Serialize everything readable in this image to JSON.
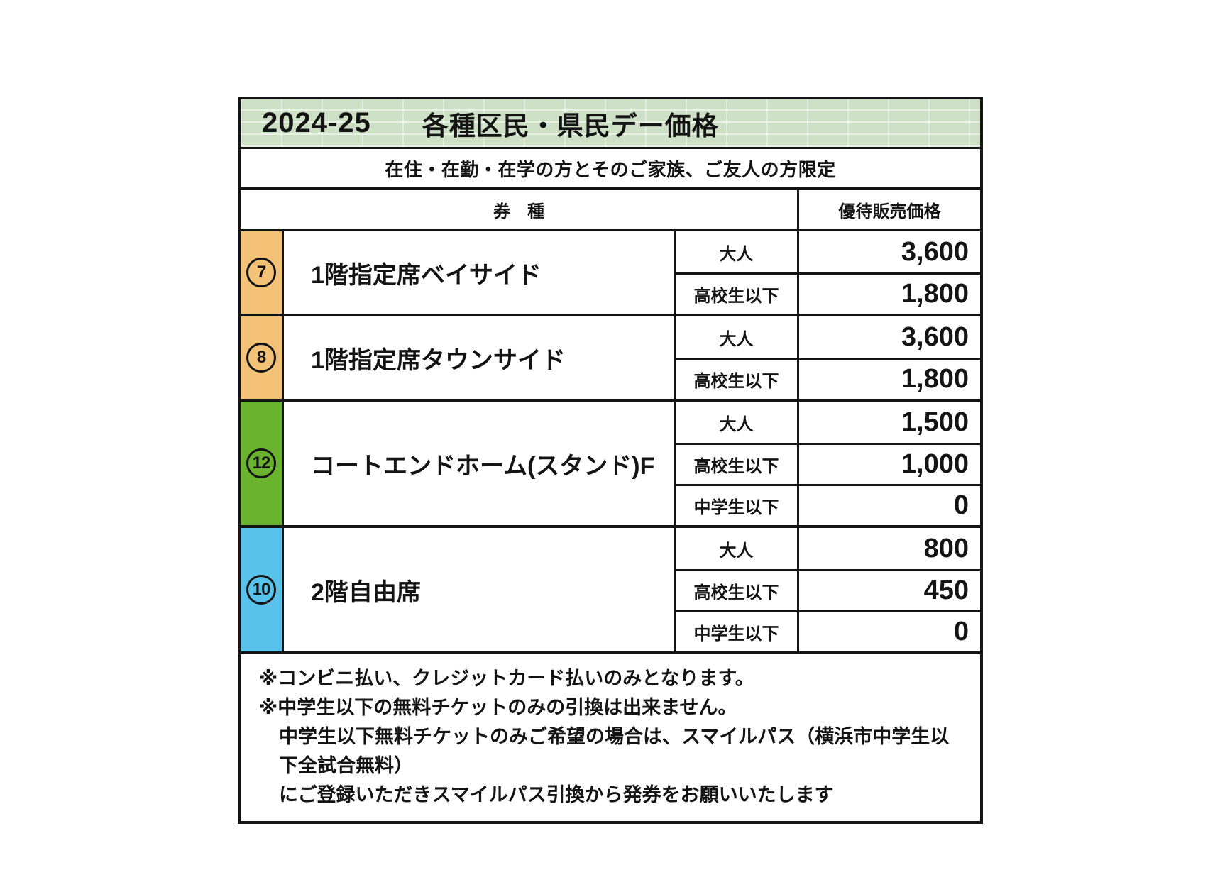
{
  "header": {
    "season": "2024-25",
    "title": "各種区民・県民デー価格",
    "subtitle": "在住・在勤・在学の方とそのご家族、ご友人の方限定",
    "col_ticket_type": "券　種",
    "col_price": "優待販売価格"
  },
  "colors": {
    "header_green": "#cde0c6",
    "bar_orange": "#f4c276",
    "bar_green": "#6ab32e",
    "bar_blue": "#58c2eb",
    "border_black": "#141414"
  },
  "table": {
    "groups": [
      {
        "number": "7",
        "color": "#f4c276",
        "name": "1階指定席ベイサイド",
        "rows": [
          {
            "age": "大人",
            "price": "3,600"
          },
          {
            "age": "高校生以下",
            "price": "1,800"
          }
        ]
      },
      {
        "number": "8",
        "color": "#f4c276",
        "name": "1階指定席タウンサイド",
        "rows": [
          {
            "age": "大人",
            "price": "3,600"
          },
          {
            "age": "高校生以下",
            "price": "1,800"
          }
        ]
      },
      {
        "number": "12",
        "color": "#6ab32e",
        "name": "コートエンドホーム(スタンド)F",
        "rows": [
          {
            "age": "大人",
            "price": "1,500"
          },
          {
            "age": "高校生以下",
            "price": "1,000"
          },
          {
            "age": "中学生以下",
            "price": "0"
          }
        ]
      },
      {
        "number": "10",
        "color": "#58c2eb",
        "name": "2階自由席",
        "rows": [
          {
            "age": "大人",
            "price": "800"
          },
          {
            "age": "高校生以下",
            "price": "450"
          },
          {
            "age": "中学生以下",
            "price": "0"
          }
        ]
      }
    ]
  },
  "notes": {
    "lines": [
      "※コンビニ払い、クレジットカード払いのみとなります。",
      "※中学生以下の無料チケットのみの引換は出来ません。",
      "中学生以下無料チケットのみご希望の場合は、スマイルパス（横浜市中学生以下全試合無料）",
      "にご登録いただきスマイルパス引換から発券をお願いいたします"
    ]
  }
}
